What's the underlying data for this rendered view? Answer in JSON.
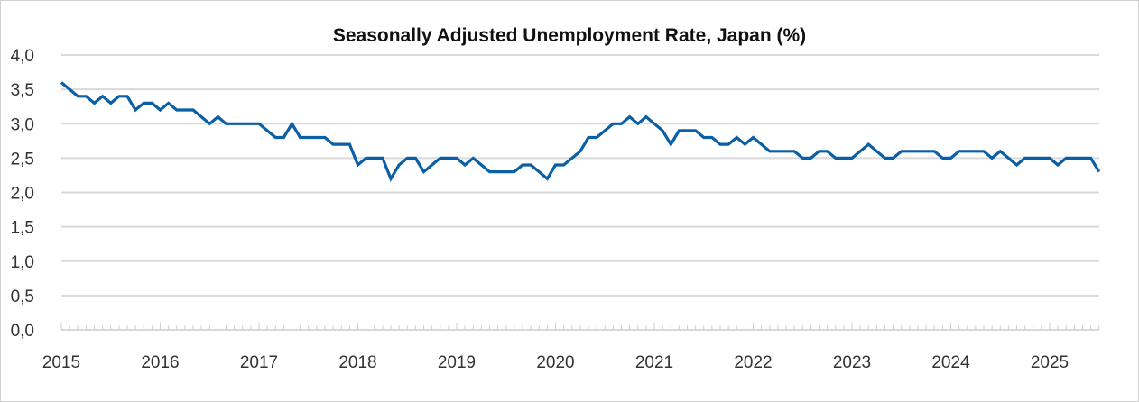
{
  "chart_data": {
    "type": "line",
    "title": "Seasonally Adjusted Unemployment Rate, Japan (%)",
    "xlabel": "",
    "ylabel": "",
    "ylim": [
      0,
      4.0
    ],
    "yticks": [
      "0,0",
      "0,5",
      "1,0",
      "1,5",
      "2,0",
      "2,5",
      "3,0",
      "3,5",
      "4,0"
    ],
    "xticks": [
      "2015",
      "2016",
      "2017",
      "2018",
      "2019",
      "2020",
      "2021",
      "2022",
      "2023",
      "2024",
      "2025"
    ],
    "x_start": "2015-01",
    "x_end": "2025-07",
    "frequency": "monthly",
    "grid": "horizontal",
    "line_color": "#0b5fa5",
    "series": [
      {
        "values": [
          3.6,
          3.5,
          3.4,
          3.4,
          3.3,
          3.4,
          3.3,
          3.4,
          3.4,
          3.2,
          3.3,
          3.3,
          3.2,
          3.3,
          3.2,
          3.2,
          3.2,
          3.1,
          3.0,
          3.1,
          3.0,
          3.0,
          3.0,
          3.0,
          3.0,
          2.9,
          2.8,
          2.8,
          3.0,
          2.8,
          2.8,
          2.8,
          2.8,
          2.7,
          2.7,
          2.7,
          2.4,
          2.5,
          2.5,
          2.5,
          2.2,
          2.4,
          2.5,
          2.5,
          2.3,
          2.4,
          2.5,
          2.5,
          2.5,
          2.4,
          2.5,
          2.4,
          2.3,
          2.3,
          2.3,
          2.3,
          2.4,
          2.4,
          2.3,
          2.2,
          2.4,
          2.4,
          2.5,
          2.6,
          2.8,
          2.8,
          2.9,
          3.0,
          3.0,
          3.1,
          3.0,
          3.1,
          3.0,
          2.9,
          2.7,
          2.9,
          2.9,
          2.9,
          2.8,
          2.8,
          2.7,
          2.7,
          2.8,
          2.7,
          2.8,
          2.7,
          2.6,
          2.6,
          2.6,
          2.6,
          2.5,
          2.5,
          2.6,
          2.6,
          2.5,
          2.5,
          2.5,
          2.6,
          2.7,
          2.6,
          2.5,
          2.5,
          2.6,
          2.6,
          2.6,
          2.6,
          2.6,
          2.5,
          2.5,
          2.6,
          2.6,
          2.6,
          2.6,
          2.5,
          2.6,
          2.5,
          2.4,
          2.5,
          2.5,
          2.5,
          2.5,
          2.4,
          2.5,
          2.5,
          2.5,
          2.5,
          2.3
        ]
      }
    ]
  }
}
